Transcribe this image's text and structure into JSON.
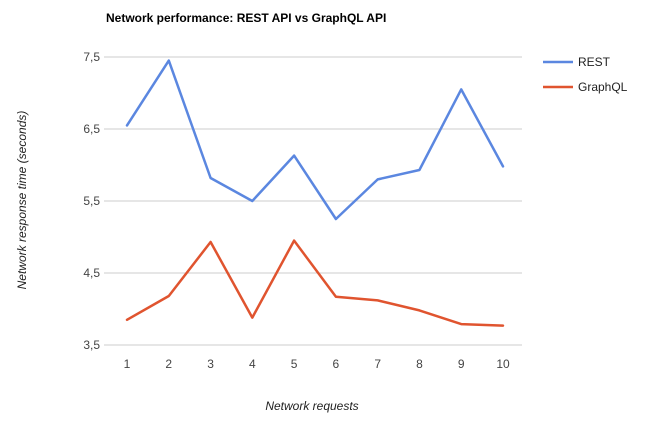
{
  "chart_data": {
    "type": "line",
    "title": "Network performance: REST API vs GraphQL API",
    "xlabel": "Network requests",
    "ylabel": "Network response time (seconds)",
    "categories": [
      "1",
      "2",
      "3",
      "4",
      "5",
      "6",
      "7",
      "8",
      "9",
      "10"
    ],
    "ylim": [
      3.5,
      7.5
    ],
    "yticks": [
      "3,5",
      "4,5",
      "5,5",
      "6,5",
      "7,5"
    ],
    "ytick_values": [
      3.5,
      4.5,
      5.5,
      6.5,
      7.5
    ],
    "grid": true,
    "legend_position": "right",
    "series": [
      {
        "name": "REST",
        "color": "#5b87e0",
        "values": [
          6.55,
          7.45,
          5.82,
          5.5,
          6.13,
          5.25,
          5.8,
          5.93,
          7.05,
          5.98
        ]
      },
      {
        "name": "GraphQL",
        "color": "#e0542f",
        "values": [
          3.85,
          4.18,
          4.93,
          3.88,
          4.95,
          4.17,
          4.12,
          3.98,
          3.79,
          3.77
        ]
      }
    ]
  }
}
